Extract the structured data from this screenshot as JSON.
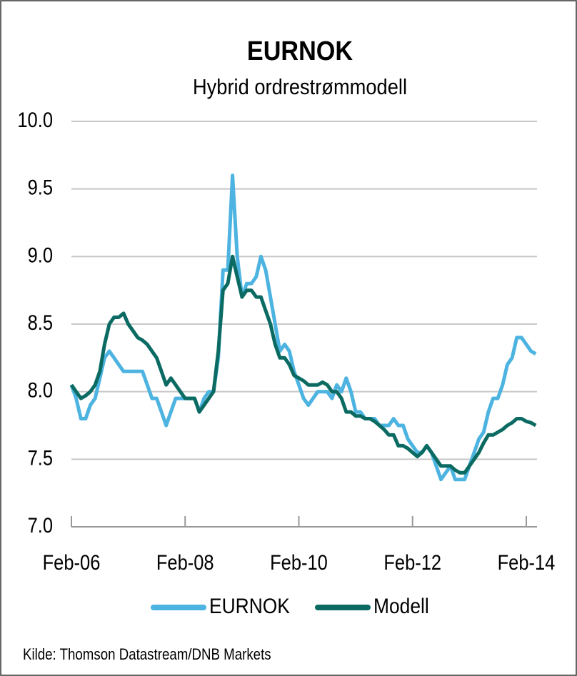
{
  "chart_data": {
    "type": "line",
    "title": "EURNOK",
    "subtitle": "Hybrid ordrestrømmodell",
    "source": "Kilde: Thomson  Datastream/DNB Markets",
    "categories": [
      "Feb-06",
      null,
      null,
      null,
      null,
      null,
      null,
      null,
      null,
      null,
      null,
      null,
      null,
      null,
      null,
      null,
      null,
      null,
      null,
      null,
      null,
      null,
      null,
      null,
      "Feb-08",
      null,
      null,
      null,
      null,
      null,
      null,
      null,
      null,
      null,
      null,
      null,
      null,
      null,
      null,
      null,
      null,
      null,
      null,
      null,
      null,
      null,
      null,
      null,
      "Feb-10",
      null,
      null,
      null,
      null,
      null,
      null,
      null,
      null,
      null,
      null,
      null,
      null,
      null,
      null,
      null,
      null,
      null,
      null,
      null,
      null,
      null,
      null,
      null,
      "Feb-12",
      null,
      null,
      null,
      null,
      null,
      null,
      null,
      null,
      null,
      null,
      null,
      null,
      null,
      null,
      null,
      null,
      null,
      null,
      null,
      null,
      null,
      null,
      null,
      "Feb-14",
      null,
      null
    ],
    "series": [
      {
        "name": "EURNOK",
        "color": "#4db3e0",
        "values": [
          8.05,
          7.95,
          7.8,
          7.8,
          7.9,
          7.95,
          8.1,
          8.25,
          8.3,
          8.25,
          8.2,
          8.15,
          8.15,
          8.15,
          8.15,
          8.15,
          8.05,
          7.95,
          7.95,
          7.85,
          7.75,
          7.85,
          7.95,
          7.95,
          7.95,
          7.95,
          7.95,
          7.85,
          7.95,
          8.0,
          8.0,
          8.25,
          8.9,
          8.9,
          9.6,
          9.0,
          8.7,
          8.8,
          8.8,
          8.85,
          9.0,
          8.9,
          8.7,
          8.5,
          8.3,
          8.35,
          8.3,
          8.15,
          8.05,
          7.95,
          7.9,
          7.95,
          8.0,
          8.0,
          8.0,
          7.95,
          8.05,
          8.0,
          8.1,
          8.0,
          7.85,
          7.85,
          7.8,
          7.8,
          7.8,
          7.75,
          7.75,
          7.75,
          7.8,
          7.75,
          7.75,
          7.65,
          7.6,
          7.55,
          7.55,
          7.6,
          7.55,
          7.45,
          7.35,
          7.4,
          7.45,
          7.35,
          7.35,
          7.35,
          7.45,
          7.55,
          7.65,
          7.7,
          7.85,
          7.95,
          7.95,
          8.05,
          8.2,
          8.25,
          8.4,
          8.4,
          8.35,
          8.3,
          8.28
        ]
      },
      {
        "name": "Modell",
        "color": "#0b6b63",
        "values": [
          8.05,
          8.0,
          7.95,
          7.97,
          8.0,
          8.05,
          8.15,
          8.35,
          8.5,
          8.55,
          8.55,
          8.58,
          8.5,
          8.45,
          8.4,
          8.38,
          8.35,
          8.3,
          8.25,
          8.15,
          8.05,
          8.1,
          8.05,
          8.0,
          7.95,
          7.95,
          7.95,
          7.85,
          7.9,
          7.95,
          8.0,
          8.3,
          8.75,
          8.8,
          9.0,
          8.85,
          8.7,
          8.75,
          8.75,
          8.7,
          8.7,
          8.6,
          8.5,
          8.35,
          8.25,
          8.25,
          8.2,
          8.12,
          8.1,
          8.08,
          8.05,
          8.05,
          8.05,
          8.07,
          8.05,
          8.0,
          8.0,
          7.95,
          7.85,
          7.85,
          7.82,
          7.82,
          7.8,
          7.8,
          7.78,
          7.75,
          7.72,
          7.68,
          7.68,
          7.6,
          7.6,
          7.58,
          7.55,
          7.52,
          7.55,
          7.6,
          7.55,
          7.5,
          7.45,
          7.45,
          7.45,
          7.42,
          7.4,
          7.4,
          7.45,
          7.5,
          7.55,
          7.62,
          7.68,
          7.68,
          7.7,
          7.72,
          7.75,
          7.77,
          7.8,
          7.8,
          7.78,
          7.77,
          7.75
        ]
      }
    ],
    "ylim": [
      7.0,
      10.0
    ],
    "yticks": [
      {
        "value": 7,
        "label": "7.0"
      },
      7.5,
      {
        "value": 8,
        "label": "8.0"
      },
      8.5,
      {
        "value": 9,
        "label": "9.0"
      },
      9.5,
      {
        "value": 10,
        "label": "10.0"
      }
    ],
    "grid": true,
    "legend": "bottom"
  }
}
